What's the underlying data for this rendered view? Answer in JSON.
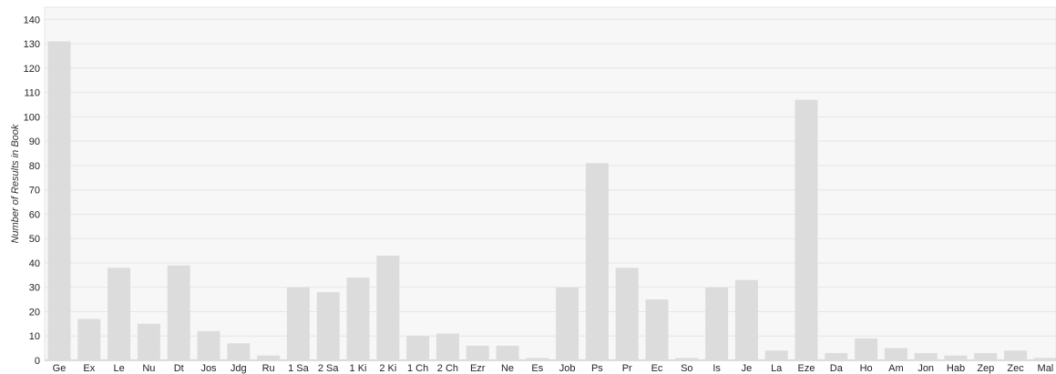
{
  "chart_data": {
    "type": "bar",
    "title": "",
    "xlabel": "",
    "ylabel": "Number of Results in Book",
    "ylim": [
      0,
      145
    ],
    "yticks": [
      0,
      10,
      20,
      30,
      40,
      50,
      60,
      70,
      80,
      90,
      100,
      110,
      120,
      130,
      140
    ],
    "grid": true,
    "legend": "none",
    "categories": [
      "Ge",
      "Ex",
      "Le",
      "Nu",
      "Dt",
      "Jos",
      "Jdg",
      "Ru",
      "1 Sa",
      "2 Sa",
      "1 Ki",
      "2 Ki",
      "1 Ch",
      "2 Ch",
      "Ezr",
      "Ne",
      "Es",
      "Job",
      "Ps",
      "Pr",
      "Ec",
      "So",
      "Is",
      "Je",
      "La",
      "Eze",
      "Da",
      "Ho",
      "Am",
      "Jon",
      "Hab",
      "Zep",
      "Zec",
      "Mal"
    ],
    "values": [
      131,
      17,
      38,
      15,
      39,
      12,
      7,
      2,
      30,
      28,
      34,
      43,
      10,
      11,
      6,
      6,
      1,
      30,
      81,
      38,
      25,
      1,
      30,
      33,
      4,
      107,
      3,
      9,
      5,
      3,
      2,
      3,
      4,
      1
    ],
    "colors": {
      "bar": "#dcdcdc",
      "grid": "#e6e6e6",
      "background": "#f7f7f7",
      "axis": "#bbbbbb"
    }
  }
}
